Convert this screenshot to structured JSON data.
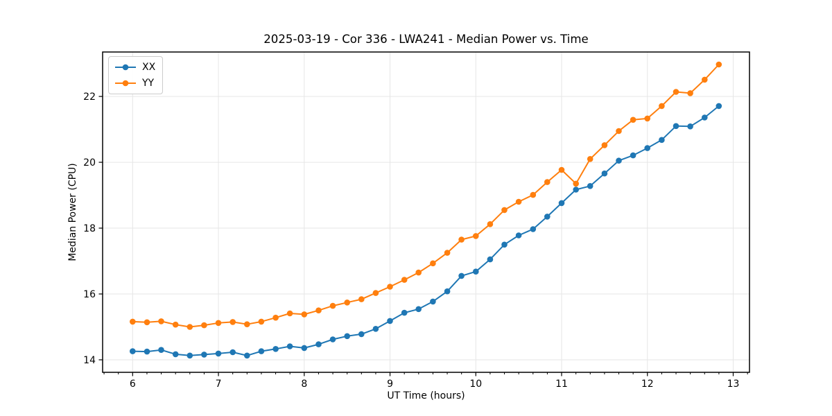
{
  "title": "2025-03-19 - Cor 336 - LWA241 - Median Power vs. Time",
  "chart_data": {
    "type": "line",
    "title": "2025-03-19 - Cor 336 - LWA241 - Median Power vs. Time",
    "xlabel": "UT Time (hours)",
    "ylabel": "Median Power (CPU)",
    "x": [
      6,
      6.167,
      6.333,
      6.5,
      6.667,
      6.833,
      7,
      7.167,
      7.333,
      7.5,
      7.667,
      7.833,
      8,
      8.167,
      8.333,
      8.5,
      8.667,
      8.833,
      9,
      9.167,
      9.333,
      9.5,
      9.667,
      9.833,
      10,
      10.167,
      10.333,
      10.5,
      10.667,
      10.833,
      11,
      11.167,
      11.333,
      11.5,
      11.667,
      11.833,
      12,
      12.167,
      12.333,
      12.5,
      12.667,
      12.833
    ],
    "series": [
      {
        "name": "XX",
        "color": "#1f77b4",
        "values": [
          14.26,
          14.25,
          14.3,
          14.17,
          14.13,
          14.16,
          14.19,
          14.23,
          14.13,
          14.26,
          14.33,
          14.41,
          14.36,
          14.47,
          14.62,
          14.72,
          14.78,
          14.94,
          15.18,
          15.43,
          15.54,
          15.77,
          16.08,
          16.55,
          16.68,
          17.05,
          17.5,
          17.78,
          17.97,
          18.35,
          18.76,
          19.17,
          19.28,
          19.66,
          20.05,
          20.21,
          20.43,
          20.68,
          21.1,
          21.09,
          21.36,
          21.71
        ]
      },
      {
        "name": "YY",
        "color": "#ff7f0e",
        "values": [
          15.16,
          15.14,
          15.17,
          15.07,
          15.0,
          15.05,
          15.12,
          15.15,
          15.08,
          15.16,
          15.28,
          15.41,
          15.38,
          15.5,
          15.64,
          15.74,
          15.84,
          16.03,
          16.22,
          16.43,
          16.65,
          16.93,
          17.25,
          17.65,
          17.76,
          18.12,
          18.55,
          18.8,
          19.01,
          19.4,
          19.77,
          19.35,
          20.1,
          20.52,
          20.95,
          21.29,
          21.33,
          21.71,
          22.14,
          22.1,
          22.51,
          22.97
        ]
      }
    ],
    "xlim": [
      5.65,
      13.19
    ],
    "ylim": [
      13.62,
      23.35
    ],
    "x_ticks": [
      6,
      7,
      8,
      9,
      10,
      11,
      12,
      13
    ],
    "y_ticks": [
      14,
      16,
      18,
      20,
      22
    ],
    "x_minor_step": 0.16667,
    "grid": true,
    "grid_color": "#e6e6e6",
    "legend_position": "upper left",
    "marker": "o"
  }
}
